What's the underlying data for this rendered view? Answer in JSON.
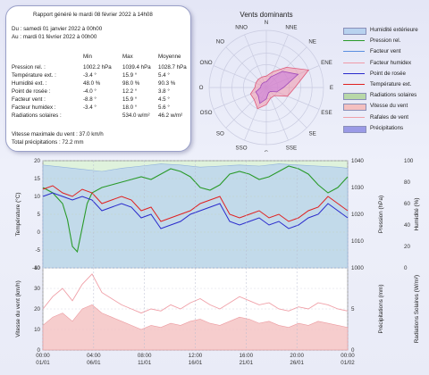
{
  "summary": {
    "title": "Rapport généré le mardi 08 février 2022 à 14h08",
    "period_from": "Du : samedi 01 janvier 2022 à 00h00",
    "period_to": "Au : mardi 01 février 2022 à 00h00",
    "col_headers": [
      "Min",
      "Max",
      "Moyenne"
    ],
    "rows": [
      {
        "label": "Pression rel. :",
        "min": "1002.2 hPa",
        "max": "1039.4 hPa",
        "avg": "1028.7 hPa"
      },
      {
        "label": "Température ext. :",
        "min": "-3.4 °",
        "max": "15.9 °",
        "avg": "5.4 °"
      },
      {
        "label": "Humidité ext. :",
        "min": "48.0 %",
        "max": "98.0 %",
        "avg": "90.3 %"
      },
      {
        "label": "Point de rosée :",
        "min": "-4.0 °",
        "max": "12.2 °",
        "avg": "3.8 °"
      },
      {
        "label": "Facteur vent :",
        "min": "-8.8 °",
        "max": "15.9 °",
        "avg": "4.5 °"
      },
      {
        "label": "Facteur humidex :",
        "min": "-3.4 °",
        "max": "18.0 °",
        "avg": "5.6 °"
      },
      {
        "label": "Radiations solaires :",
        "min": "",
        "max": "534.0 w/m²",
        "avg": "46.2 w/m²"
      }
    ],
    "max_wind": "Vitesse maximale du vent : 37.0 km/h",
    "total_rain": "Total précipitations : 72.2 mm"
  },
  "rose": {
    "title": "Vents dominants",
    "directions": [
      "N",
      "NNE",
      "NE",
      "ENE",
      "E",
      "ESE",
      "SE",
      "SSE",
      "S",
      "SSO",
      "SO",
      "OSO",
      "O",
      "ONO",
      "NO",
      "NNO"
    ],
    "frequency": [
      2,
      3,
      5,
      8,
      5,
      4,
      2,
      2,
      3,
      4,
      3,
      3,
      2,
      2,
      2,
      2
    ],
    "speed": [
      1,
      2,
      4,
      6,
      3,
      2,
      1,
      1,
      2,
      3,
      2,
      2,
      1,
      1,
      1,
      1
    ],
    "scale_max": 10
  },
  "legend": [
    {
      "label": "Humidité extérieure",
      "kind": "fill",
      "color": "#b8d2ef"
    },
    {
      "label": "Pression rel.",
      "kind": "line",
      "color": "#2a9a2a"
    },
    {
      "label": "Facteur vent",
      "kind": "line",
      "color": "#5a8fe0"
    },
    {
      "label": "Facteur humidex",
      "kind": "line",
      "color": "#f09aa8"
    },
    {
      "label": "Point de rosée",
      "kind": "line",
      "color": "#2a2acc"
    },
    {
      "label": "Température ext.",
      "kind": "line",
      "color": "#e02020"
    },
    {
      "label": "Radiations solaires",
      "kind": "fill",
      "color": "#b8d8a8"
    },
    {
      "label": "Vitesse du vent",
      "kind": "fill",
      "color": "#f4c0c0"
    },
    {
      "label": "Rafales de vent",
      "kind": "line",
      "color": "#f0a0a8"
    },
    {
      "label": "Précipitations",
      "kind": "fill",
      "color": "#9a9ae6"
    }
  ],
  "chart_data": {
    "type": "line",
    "x_ticks": [
      {
        "date": "01/01",
        "time": "00:00"
      },
      {
        "date": "06/01",
        "time": "04:00"
      },
      {
        "date": "11/01",
        "time": "08:00"
      },
      {
        "date": "16/01",
        "time": "12:00"
      },
      {
        "date": "21/01",
        "time": "16:00"
      },
      {
        "date": "26/01",
        "time": "20:00"
      },
      {
        "date": "01/02",
        "time": "00:00"
      }
    ],
    "x_range_days": [
      0,
      31
    ],
    "top_panel": {
      "ylabel_left": "Température (°C)",
      "ylabel_mid": "Pression (hPa)",
      "ylabel_right": "Humidité (%)",
      "ylim_temp": [
        -10,
        20
      ],
      "ylim_pressure": [
        1000,
        1040
      ],
      "temp_ticks": [
        20,
        15,
        10,
        5,
        0,
        -5,
        -10
      ],
      "pressure_ticks": [
        1040,
        1030,
        1020,
        1010,
        1000
      ],
      "humidity_ticks": [
        100,
        80,
        60,
        40,
        20,
        0
      ],
      "pressure_series": {
        "name": "Pression rel.",
        "x": [
          0,
          1,
          2,
          2.5,
          3,
          3.5,
          4,
          4.5,
          5,
          6,
          7,
          8,
          9,
          10,
          11,
          12,
          13,
          14,
          15,
          16,
          17,
          18,
          19,
          20,
          21,
          22,
          23,
          24,
          25,
          26,
          27,
          28,
          29,
          30,
          31
        ],
        "y": [
          1030,
          1028,
          1024,
          1018,
          1008,
          1006,
          1015,
          1024,
          1028,
          1030,
          1031,
          1032,
          1033,
          1034,
          1033,
          1035,
          1037,
          1036,
          1034,
          1030,
          1029,
          1031,
          1035,
          1036,
          1035,
          1033,
          1034,
          1036,
          1038,
          1037,
          1035,
          1031,
          1028,
          1030,
          1034
        ]
      },
      "temp_series": {
        "name": "Température ext.",
        "x": [
          0,
          1,
          2,
          3,
          4,
          5,
          6,
          7,
          8,
          9,
          10,
          11,
          12,
          13,
          14,
          15,
          16,
          17,
          18,
          19,
          20,
          21,
          22,
          23,
          24,
          25,
          26,
          27,
          28,
          29,
          30,
          31
        ],
        "y": [
          12,
          13,
          11,
          10,
          12,
          11,
          8,
          9,
          10,
          9,
          6,
          7,
          3,
          4,
          5,
          6,
          8,
          9,
          10,
          5,
          4,
          5,
          6,
          4,
          5,
          3,
          4,
          6,
          7,
          10,
          8,
          6
        ]
      },
      "dew_series": {
        "name": "Point de rosée",
        "x": [
          0,
          1,
          2,
          3,
          4,
          5,
          6,
          7,
          8,
          9,
          10,
          11,
          12,
          13,
          14,
          15,
          16,
          17,
          18,
          19,
          20,
          21,
          22,
          23,
          24,
          25,
          26,
          27,
          28,
          29,
          30,
          31
        ],
        "y": [
          10,
          11,
          10,
          9,
          10,
          9,
          6,
          7,
          8,
          7,
          4,
          5,
          1,
          2,
          3,
          5,
          6,
          7,
          8,
          3,
          2,
          3,
          4,
          2,
          3,
          1,
          2,
          4,
          5,
          8,
          6,
          4
        ]
      },
      "humidity_series": {
        "name": "Humidité extérieure",
        "x": [
          0,
          2,
          4,
          6,
          8,
          10,
          12,
          14,
          16,
          18,
          20,
          22,
          24,
          26,
          28,
          30,
          31
        ],
        "y": [
          96,
          94,
          92,
          90,
          93,
          95,
          97,
          96,
          94,
          95,
          96,
          95,
          97,
          96,
          95,
          94,
          93
        ]
      }
    },
    "bottom_panel": {
      "ylabel_left": "Vitesse du vent (km/h)",
      "ylabel_mid": "Précipitations (mm)",
      "ylabel_right": "Radiations Solaires (W/m²)",
      "ylim_wind": [
        0,
        40
      ],
      "wind_ticks": [
        40,
        30,
        20,
        10,
        0
      ],
      "rain_ticks": [
        5.0,
        0.0
      ],
      "wind_series": {
        "name": "Vitesse du vent",
        "x": [
          0,
          1,
          2,
          3,
          4,
          5,
          6,
          7,
          8,
          9,
          10,
          11,
          12,
          13,
          14,
          15,
          16,
          17,
          18,
          19,
          20,
          21,
          22,
          23,
          24,
          25,
          26,
          27,
          28,
          29,
          30,
          31
        ],
        "y": [
          12,
          16,
          18,
          14,
          20,
          22,
          18,
          16,
          14,
          12,
          10,
          12,
          11,
          13,
          12,
          14,
          15,
          13,
          12,
          14,
          16,
          15,
          13,
          14,
          12,
          11,
          13,
          12,
          14,
          13,
          12,
          11
        ]
      },
      "gust_series": {
        "name": "Rafales de vent",
        "x": [
          0,
          1,
          2,
          3,
          4,
          5,
          6,
          7,
          8,
          9,
          10,
          11,
          12,
          13,
          14,
          15,
          16,
          17,
          18,
          19,
          20,
          21,
          22,
          23,
          24,
          25,
          26,
          27,
          28,
          29,
          30,
          31
        ],
        "y": [
          20,
          26,
          30,
          24,
          32,
          37,
          28,
          25,
          22,
          20,
          18,
          20,
          19,
          22,
          20,
          23,
          25,
          22,
          20,
          23,
          26,
          24,
          22,
          23,
          20,
          19,
          21,
          20,
          23,
          22,
          20,
          19
        ]
      }
    }
  }
}
